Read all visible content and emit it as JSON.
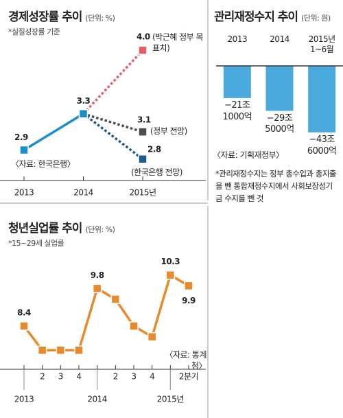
{
  "chart_data": [
    {
      "type": "line",
      "title": "경제성장률 추이",
      "unit": "(단위: %)",
      "note": "*실질성장률 기준",
      "source": "〈자료: 한국은행〉",
      "categories": [
        "2013",
        "2014",
        "2015년"
      ],
      "ylim": [
        2.7,
        4.1
      ],
      "series": [
        {
          "color": "#1b8fcc",
          "style": "solid",
          "values": [
            2.9,
            3.3,
            null
          ]
        },
        {
          "name": "(박근혜 정부 목표치)",
          "color": "#e2606b",
          "style": "dotted",
          "values": [
            null,
            3.3,
            4.0
          ],
          "value_labels": [
            null,
            null,
            "4.0"
          ]
        },
        {
          "name": "(정부 전망)",
          "color": "#4d4d4d",
          "style": "dotted",
          "values": [
            null,
            3.3,
            3.1
          ]
        },
        {
          "name": "(한국은행 전망)",
          "color": "#1d5a86",
          "style": "dotted",
          "values": [
            null,
            3.3,
            2.8
          ]
        }
      ]
    },
    {
      "type": "bar",
      "title": "관리재정수지 추이",
      "unit": "(단위: 원)",
      "source": "〈자료: 기획재정부〉",
      "note": "*관리재정수지는 정부 총수입과 총지출을 뺀 통합재정수지에서 사회보장성기금 수지를 뺀 것",
      "categories": [
        "2013",
        "2014",
        "2015년 1~6월"
      ],
      "values": [
        -21.1,
        -29.5,
        -43.6
      ],
      "value_labels": [
        "−21조 1000억",
        "−29조 5000억",
        "−43조 6000억"
      ],
      "color": "#4aa9dd",
      "ylim": [
        -45,
        0
      ]
    },
    {
      "type": "line",
      "title": "청년실업률 추이",
      "unit": "(단위: %)",
      "note": "*15~29세 실업률",
      "source": "〈자료: 통계청〉",
      "categories": [
        null,
        "2",
        "3",
        "4",
        null,
        "2",
        "3",
        "4",
        null,
        "2분기"
      ],
      "year_labels": [
        "2013",
        "2014",
        "2015년"
      ],
      "ylim": [
        7.2,
        10.6
      ],
      "series": [
        {
          "color": "#e8892b",
          "style": "solid",
          "values": [
            8.4,
            7.5,
            7.5,
            7.5,
            9.8,
            9.4,
            8.4,
            8.0,
            10.3,
            9.9
          ],
          "value_labels": [
            "8.4",
            null,
            null,
            null,
            "9.8",
            null,
            null,
            null,
            "10.3",
            "9.9"
          ]
        }
      ]
    }
  ]
}
